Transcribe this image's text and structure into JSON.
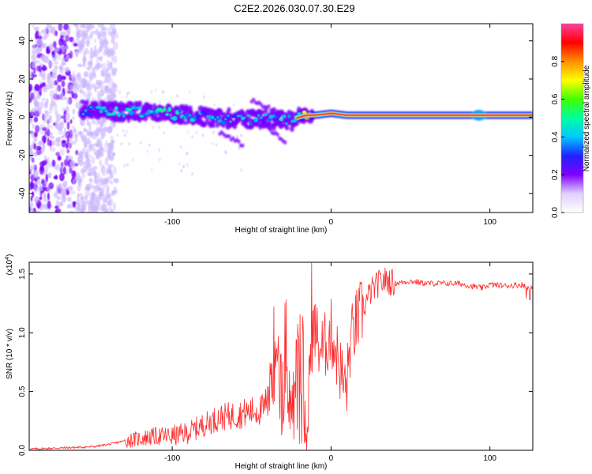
{
  "title": "C2E2.2026.030.07.30.E29",
  "colors": {
    "snr_line": "#ff2a2a",
    "band_core": "#ff2020",
    "spectrogram_low": "#7a00ff",
    "scatter_light": "#c9b3ff"
  },
  "chart_data": [
    {
      "type": "heatmap",
      "title": "C2E2.2026.030.07.30.E29",
      "xlabel": "Height of straight line (km)",
      "ylabel": "Frequency (Hz)",
      "xlim": [
        -190,
        127
      ],
      "ylim": [
        -50,
        49
      ],
      "x_ticks": [
        "-100",
        "0",
        "100"
      ],
      "y_ticks": [
        "40",
        "20",
        "0",
        "-20",
        "-40"
      ],
      "grid": false,
      "colorbar": {
        "label": "Normalized spectral amplitude",
        "range": [
          0.0,
          1.0
        ],
        "ticks": [
          "0.0",
          "0.2",
          "0.4",
          "0.6",
          "0.8"
        ],
        "colormap": [
          "#ffffff",
          "#e0d0ff",
          "#8000ff",
          "#2020ff",
          "#00c8ff",
          "#00ffa0",
          "#40ff00",
          "#ffff00",
          "#ff9000",
          "#ff0000",
          "#ff40a0"
        ]
      },
      "ridge": {
        "x": [
          -155,
          -140,
          -120,
          -105,
          -90,
          -75,
          -60,
          -45,
          -35,
          -25,
          -20,
          -15,
          -10,
          0,
          10,
          20,
          40,
          60,
          80,
          95,
          110,
          127
        ],
        "freq": [
          4,
          3,
          3,
          2,
          1,
          0,
          -1,
          -1,
          -1,
          -2,
          0,
          1,
          1,
          2,
          1,
          1,
          1,
          1,
          1,
          1,
          1,
          1
        ],
        "amplitude": [
          0.3,
          0.4,
          0.45,
          0.45,
          0.4,
          0.35,
          0.35,
          0.35,
          0.35,
          0.4,
          0.55,
          0.7,
          0.85,
          0.8,
          0.85,
          0.9,
          0.95,
          0.95,
          0.95,
          0.9,
          0.95,
          0.95
        ]
      }
    },
    {
      "type": "line",
      "xlabel": "Height of straight line (km)",
      "ylabel": "SNR (10 * v/v)",
      "y_multiplier": "(x10",
      "y_multiplier_exp": "4",
      "y_multiplier_close": ")",
      "xlim": [
        -190,
        127
      ],
      "ylim": [
        0,
        1.6
      ],
      "x_ticks": [
        "-100",
        "0",
        "100"
      ],
      "y_ticks": [
        "0.0",
        "0.5",
        "1.0",
        "1.5"
      ],
      "grid": false,
      "series": [
        {
          "color": "#ff2a2a",
          "x": [
            -190,
            -170,
            -150,
            -140,
            -130,
            -120,
            -110,
            -100,
            -90,
            -80,
            -70,
            -60,
            -50,
            -42,
            -38,
            -35,
            -30,
            -25,
            -20,
            -15,
            -12,
            -10,
            -8,
            -5,
            0,
            5,
            8,
            10,
            12,
            15,
            20,
            25,
            30,
            35,
            40,
            50,
            60,
            80,
            95,
            100,
            110,
            120,
            125
          ],
          "y": [
            0.01,
            0.02,
            0.03,
            0.05,
            0.08,
            0.1,
            0.12,
            0.12,
            0.15,
            0.22,
            0.28,
            0.3,
            0.33,
            0.35,
            0.7,
            0.55,
            0.45,
            0.4,
            0.35,
            0.3,
            0.95,
            1.05,
            0.9,
            0.85,
            1.0,
            0.75,
            0.55,
            0.55,
            0.9,
            1.05,
            1.2,
            1.35,
            1.42,
            1.45,
            1.42,
            1.44,
            1.42,
            1.42,
            1.38,
            1.41,
            1.4,
            1.41,
            1.38
          ]
        }
      ]
    }
  ]
}
